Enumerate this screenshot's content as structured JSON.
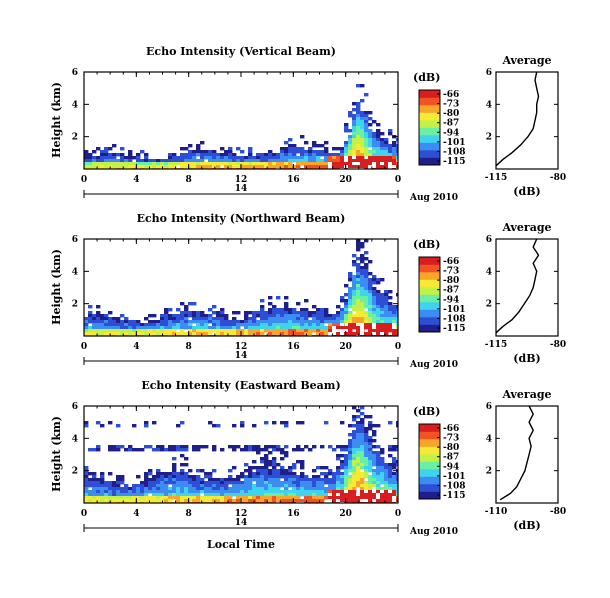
{
  "chart_data": {
    "type": "heatmap",
    "date_label": "Aug 2010",
    "xlabel": "Local Time",
    "day_label": "14",
    "x_ticks": [
      "0",
      "4",
      "8",
      "12",
      "16",
      "20",
      "0"
    ],
    "x_range_hours": [
      0,
      24
    ],
    "colorbar": {
      "unit": "(dB)",
      "ticks": [
        "-66",
        "-73",
        "-80",
        "-87",
        "-94",
        "-101",
        "-108",
        "-115"
      ],
      "range": [
        -115,
        -66
      ],
      "colors": [
        "#1f1f8c",
        "#2d4fd6",
        "#3c8df2",
        "#3fd3f0",
        "#6af0a2",
        "#c4f048",
        "#f7ea35",
        "#f9a52a",
        "#f25324",
        "#d81e1e"
      ]
    },
    "panels": [
      {
        "title": "Echo Intensity (Vertical Beam)",
        "ylabel": "Height (km)",
        "y_ticks": [
          "6",
          "4",
          "2"
        ],
        "y_range_km": [
          0,
          6
        ],
        "profile": {
          "title": "Average",
          "xlabel": "(dB)",
          "x_ticks": [
            "-115",
            "-80"
          ],
          "y_ticks": [
            "6",
            "4",
            "2"
          ],
          "x_range": [
            -115,
            -80
          ],
          "y_range": [
            0,
            6
          ],
          "points": [
            [
              -115,
              0.2
            ],
            [
              -111,
              0.6
            ],
            [
              -106,
              1.0
            ],
            [
              -101,
              1.5
            ],
            [
              -97,
              2.0
            ],
            [
              -94,
              2.5
            ],
            [
              -93,
              3.0
            ],
            [
              -92,
              3.5
            ],
            [
              -92,
              4.0
            ],
            [
              -91,
              4.5
            ],
            [
              -92,
              5.0
            ],
            [
              -93,
              5.5
            ],
            [
              -92,
              6.0
            ]
          ]
        }
      },
      {
        "title": "Echo Intensity (Northward Beam)",
        "ylabel": "Height (km)",
        "y_ticks": [
          "6",
          "4",
          "2"
        ],
        "y_range_km": [
          0,
          6
        ],
        "profile": {
          "title": "Average",
          "xlabel": "(dB)",
          "x_ticks": [
            "-115",
            "-80"
          ],
          "y_ticks": [
            "6",
            "4",
            "2"
          ],
          "x_range": [
            -115,
            -80
          ],
          "y_range": [
            0,
            6
          ],
          "points": [
            [
              -115,
              0.2
            ],
            [
              -111,
              0.6
            ],
            [
              -106,
              1.0
            ],
            [
              -102,
              1.5
            ],
            [
              -99,
              2.0
            ],
            [
              -96,
              2.5
            ],
            [
              -94,
              3.0
            ],
            [
              -93,
              3.5
            ],
            [
              -92,
              4.0
            ],
            [
              -94,
              4.5
            ],
            [
              -91,
              5.0
            ],
            [
              -94,
              5.5
            ],
            [
              -92,
              6.0
            ]
          ]
        }
      },
      {
        "title": "Echo Intensity (Eastward Beam)",
        "ylabel": "Height (km)",
        "y_ticks": [
          "6",
          "4",
          "2"
        ],
        "y_range_km": [
          0,
          6
        ],
        "profile": {
          "title": "Average",
          "xlabel": "(dB)",
          "x_ticks": [
            "-110",
            "-80"
          ],
          "y_ticks": [
            "6",
            "4",
            "2"
          ],
          "x_range": [
            -110,
            -80
          ],
          "y_range": [
            0,
            6
          ],
          "points": [
            [
              -108,
              0.2
            ],
            [
              -103,
              0.6
            ],
            [
              -100,
              1.0
            ],
            [
              -98,
              1.5
            ],
            [
              -96,
              2.0
            ],
            [
              -95,
              2.5
            ],
            [
              -94,
              3.0
            ],
            [
              -93,
              3.5
            ],
            [
              -94,
              4.0
            ],
            [
              -92,
              4.5
            ],
            [
              -94,
              5.0
            ],
            [
              -92,
              5.5
            ],
            [
              -94,
              6.0
            ]
          ]
        }
      }
    ]
  }
}
